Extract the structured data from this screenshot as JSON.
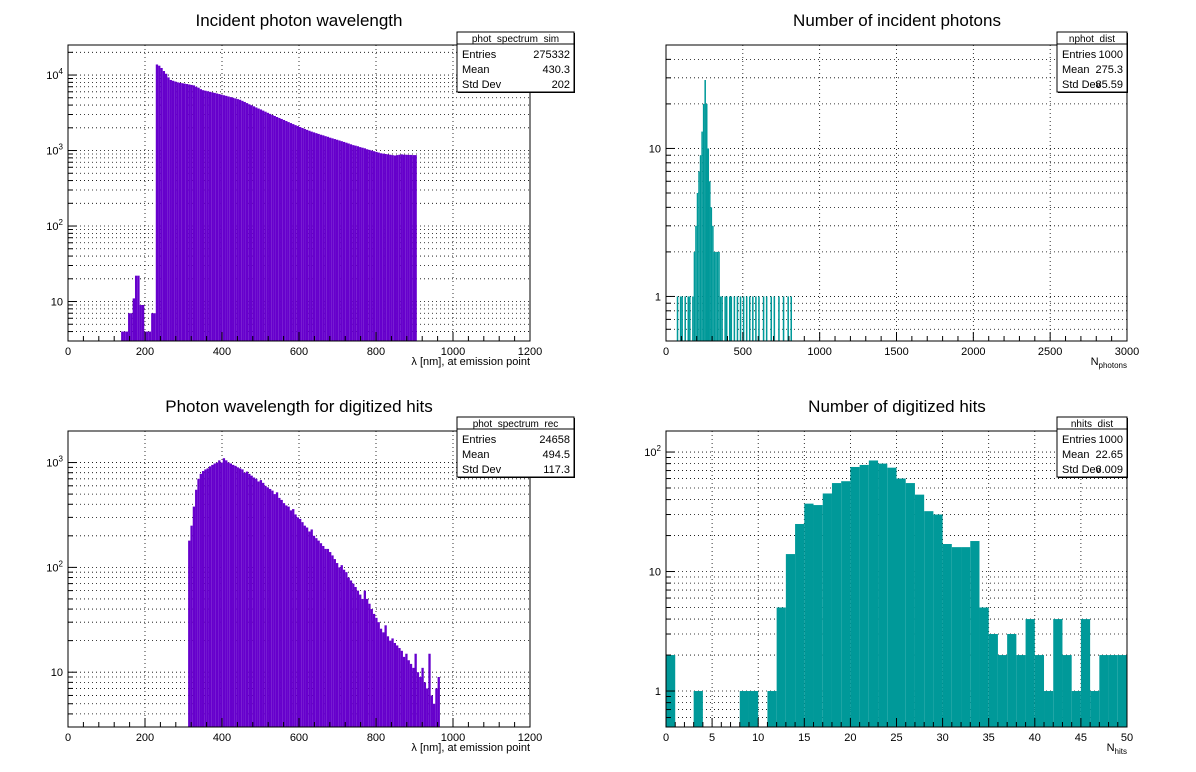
{
  "chart_data": [
    {
      "type": "bar",
      "title": "Incident photon wavelength",
      "xlabel": "λ [nm], at emission point",
      "ylabel": "",
      "log_y": true,
      "grid": true,
      "color": "#6600cc",
      "xlim": [
        0,
        1200
      ],
      "ylim": [
        3,
        25000
      ],
      "x_ticks": [
        0,
        200,
        400,
        600,
        800,
        1000,
        1200
      ],
      "y_ticks": [
        {
          "value": 10,
          "label": "10"
        },
        {
          "value": 100,
          "label": "10",
          "sup": "2"
        },
        {
          "value": 1000,
          "label": "10",
          "sup": "3"
        },
        {
          "value": 10000,
          "label": "10",
          "sup": "4"
        }
      ],
      "bin_width": 6,
      "x_start": 138,
      "values": [
        4,
        4,
        4,
        7,
        7,
        11,
        22,
        22,
        9,
        9,
        4,
        4,
        4,
        7,
        7,
        13800,
        13300,
        12400,
        11300,
        10400,
        9300,
        8600,
        8400,
        8200,
        8000,
        7900,
        7800,
        7700,
        7600,
        7500,
        7400,
        7300,
        7000,
        6800,
        6500,
        6300,
        6200,
        6100,
        6000,
        5900,
        5800,
        5700,
        5600,
        5500,
        5400,
        5300,
        5200,
        5100,
        5000,
        4900,
        4800,
        4700,
        4550,
        4400,
        4250,
        4100,
        3980,
        3850,
        3720,
        3600,
        3500,
        3380,
        3270,
        3160,
        3060,
        2960,
        2870,
        2780,
        2700,
        2620,
        2540,
        2460,
        2380,
        2310,
        2240,
        2170,
        2110,
        2050,
        1990,
        1930,
        1880,
        1830,
        1780,
        1740,
        1700,
        1660,
        1620,
        1590,
        1550,
        1520,
        1480,
        1450,
        1420,
        1390,
        1360,
        1330,
        1300,
        1270,
        1240,
        1210,
        1180,
        1160,
        1140,
        1110,
        1090,
        1070,
        1040,
        1020,
        1000,
        980,
        960,
        940,
        920,
        910,
        900,
        890,
        880,
        870,
        860,
        870,
        880,
        890,
        880,
        880,
        875,
        875,
        870,
        870
      ],
      "stats": {
        "name": "phot_spectrum_sim",
        "rows": [
          [
            "Entries",
            "275332"
          ],
          [
            "Mean",
            "430.3"
          ],
          [
            "Std Dev",
            "202"
          ]
        ]
      }
    },
    {
      "type": "bar",
      "title": "Number of incident photons",
      "xlabel": "N",
      "xlabel_sub": "photons",
      "ylabel": "",
      "log_y": true,
      "grid": true,
      "color": "#009999",
      "xlim": [
        0,
        3000
      ],
      "ylim": [
        0.5,
        50
      ],
      "x_ticks": [
        0,
        500,
        1000,
        1500,
        2000,
        2500,
        3000
      ],
      "y_ticks": [
        {
          "value": 1,
          "label": "1"
        },
        {
          "value": 10,
          "label": "10"
        }
      ],
      "bin_width": 10,
      "points": [
        [
          70,
          1
        ],
        [
          90,
          1
        ],
        [
          100,
          1
        ],
        [
          120,
          1
        ],
        [
          140,
          1
        ],
        [
          150,
          1
        ],
        [
          170,
          1
        ],
        [
          180,
          2
        ],
        [
          190,
          3
        ],
        [
          200,
          5
        ],
        [
          210,
          7
        ],
        [
          220,
          9
        ],
        [
          230,
          13
        ],
        [
          240,
          20
        ],
        [
          250,
          29
        ],
        [
          260,
          20
        ],
        [
          270,
          10
        ],
        [
          280,
          6
        ],
        [
          290,
          4
        ],
        [
          300,
          3
        ],
        [
          310,
          2
        ],
        [
          320,
          2
        ],
        [
          330,
          2
        ],
        [
          340,
          2
        ],
        [
          350,
          1
        ],
        [
          360,
          1
        ],
        [
          380,
          1
        ],
        [
          390,
          1
        ],
        [
          410,
          1
        ],
        [
          420,
          1
        ],
        [
          440,
          1
        ],
        [
          460,
          1
        ],
        [
          480,
          1
        ],
        [
          500,
          1
        ],
        [
          520,
          1
        ],
        [
          540,
          1
        ],
        [
          560,
          1
        ],
        [
          580,
          1
        ],
        [
          600,
          1
        ],
        [
          630,
          1
        ],
        [
          650,
          1
        ],
        [
          680,
          1
        ],
        [
          700,
          1
        ],
        [
          730,
          1
        ],
        [
          760,
          1
        ],
        [
          790,
          1
        ],
        [
          810,
          1
        ]
      ],
      "stats": {
        "name": "nphot_dist",
        "rows": [
          [
            "Entries",
            "1000"
          ],
          [
            "Mean",
            "275.3"
          ],
          [
            "Std Dev",
            "85.59"
          ]
        ]
      }
    },
    {
      "type": "bar",
      "title": "Photon wavelength for digitized hits",
      "xlabel": "λ [nm], at emission point",
      "ylabel": "",
      "log_y": true,
      "grid": true,
      "color": "#6600cc",
      "xlim": [
        0,
        1200
      ],
      "ylim": [
        3,
        2000
      ],
      "x_ticks": [
        0,
        200,
        400,
        600,
        800,
        1000,
        1200
      ],
      "y_ticks": [
        {
          "value": 10,
          "label": "10"
        },
        {
          "value": 100,
          "label": "10",
          "sup": "2"
        },
        {
          "value": 1000,
          "label": "10",
          "sup": "3"
        }
      ],
      "bin_width": 6,
      "x_start": 312,
      "values": [
        180,
        250,
        380,
        550,
        700,
        780,
        830,
        860,
        880,
        920,
        950,
        980,
        1000,
        1050,
        1000,
        1100,
        1050,
        1000,
        980,
        950,
        930,
        900,
        880,
        860,
        800,
        820,
        780,
        750,
        720,
        700,
        660,
        680,
        640,
        600,
        580,
        560,
        540,
        500,
        520,
        460,
        440,
        410,
        390,
        380,
        350,
        360,
        320,
        300,
        290,
        270,
        250,
        240,
        220,
        230,
        200,
        190,
        180,
        170,
        160,
        150,
        150,
        140,
        130,
        120,
        110,
        100,
        105,
        95,
        90,
        80,
        75,
        70,
        65,
        60,
        55,
        50,
        60,
        50,
        45,
        40,
        36,
        33,
        30,
        26,
        24,
        28,
        22,
        20,
        21,
        19,
        18,
        17,
        16,
        14,
        15,
        13,
        12,
        11,
        15,
        10,
        9,
        11,
        8,
        7,
        15,
        6,
        5,
        7,
        9
      ],
      "stats": {
        "name": "phot_spectrum_rec",
        "rows": [
          [
            "Entries",
            "24658"
          ],
          [
            "Mean",
            "494.5"
          ],
          [
            "Std Dev",
            "117.3"
          ]
        ]
      }
    },
    {
      "type": "bar",
      "title": "Number of digitized hits",
      "xlabel": "N",
      "xlabel_sub": "hits",
      "ylabel": "",
      "log_y": true,
      "grid": true,
      "color": "#009999",
      "xlim": [
        0,
        50
      ],
      "ylim": [
        0.5,
        150
      ],
      "x_ticks": [
        0,
        5,
        10,
        15,
        20,
        25,
        30,
        35,
        40,
        45,
        50
      ],
      "y_ticks": [
        {
          "value": 1,
          "label": "1"
        },
        {
          "value": 10,
          "label": "10"
        },
        {
          "value": 100,
          "label": "10",
          "sup": "2"
        }
      ],
      "bin_width": 1,
      "x_start": 0,
      "values": [
        2,
        0,
        0,
        1,
        0,
        0,
        0,
        0,
        1,
        1,
        0,
        1,
        5,
        14,
        25,
        37,
        36,
        45,
        55,
        57,
        75,
        78,
        85,
        80,
        74,
        60,
        55,
        44,
        32,
        30,
        17,
        16,
        16,
        18,
        5,
        3,
        2,
        3,
        2,
        4,
        2,
        1,
        4,
        2,
        1,
        4,
        1,
        2,
        2,
        2
      ],
      "stats": {
        "name": "nhits_dist",
        "rows": [
          [
            "Entries",
            "1000"
          ],
          [
            "Mean",
            "22.65"
          ],
          [
            "Std Dev",
            "6.009"
          ]
        ]
      }
    }
  ]
}
